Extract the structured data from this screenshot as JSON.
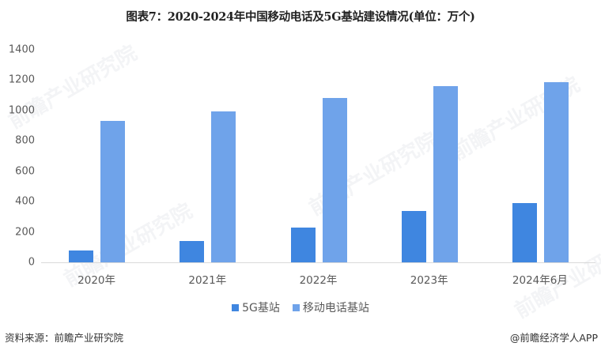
{
  "title": "图表7：2020-2024年中国移动电话及5G基站建设情况(单位：万个)",
  "colors": {
    "5g": "#3f86e0",
    "mobile": "#6fa3ea",
    "axis": "#d9d9d9",
    "text": "#595959"
  },
  "chart_data": {
    "type": "bar",
    "title": "图表7：2020-2024年中国移动电话及5G基站建设情况(单位：万个)",
    "xlabel": "",
    "ylabel": "万个",
    "categories": [
      "2020年",
      "2021年",
      "2022年",
      "2023年",
      "2024年6月"
    ],
    "series": [
      {
        "name": "5G基站",
        "values": [
          77,
          142,
          231,
          338,
          392
        ]
      },
      {
        "name": "移动电话基站",
        "values": [
          931,
          996,
          1083,
          1162,
          1188
        ]
      }
    ],
    "ylim": [
      0,
      1400
    ],
    "yticks": [
      0,
      200,
      400,
      600,
      800,
      1000,
      1200,
      1400
    ],
    "grid": false,
    "legend_position": "bottom"
  },
  "yticks": [
    "1400",
    "1200",
    "1000",
    "800",
    "600",
    "400",
    "200",
    "0"
  ],
  "legend": {
    "item1": "5G基站",
    "item2": "移动电话基站"
  },
  "footer": {
    "source": "资料来源：前瞻产业研究院",
    "credit": "@前瞻经济学人APP"
  },
  "watermark": "前瞻产业研究院"
}
